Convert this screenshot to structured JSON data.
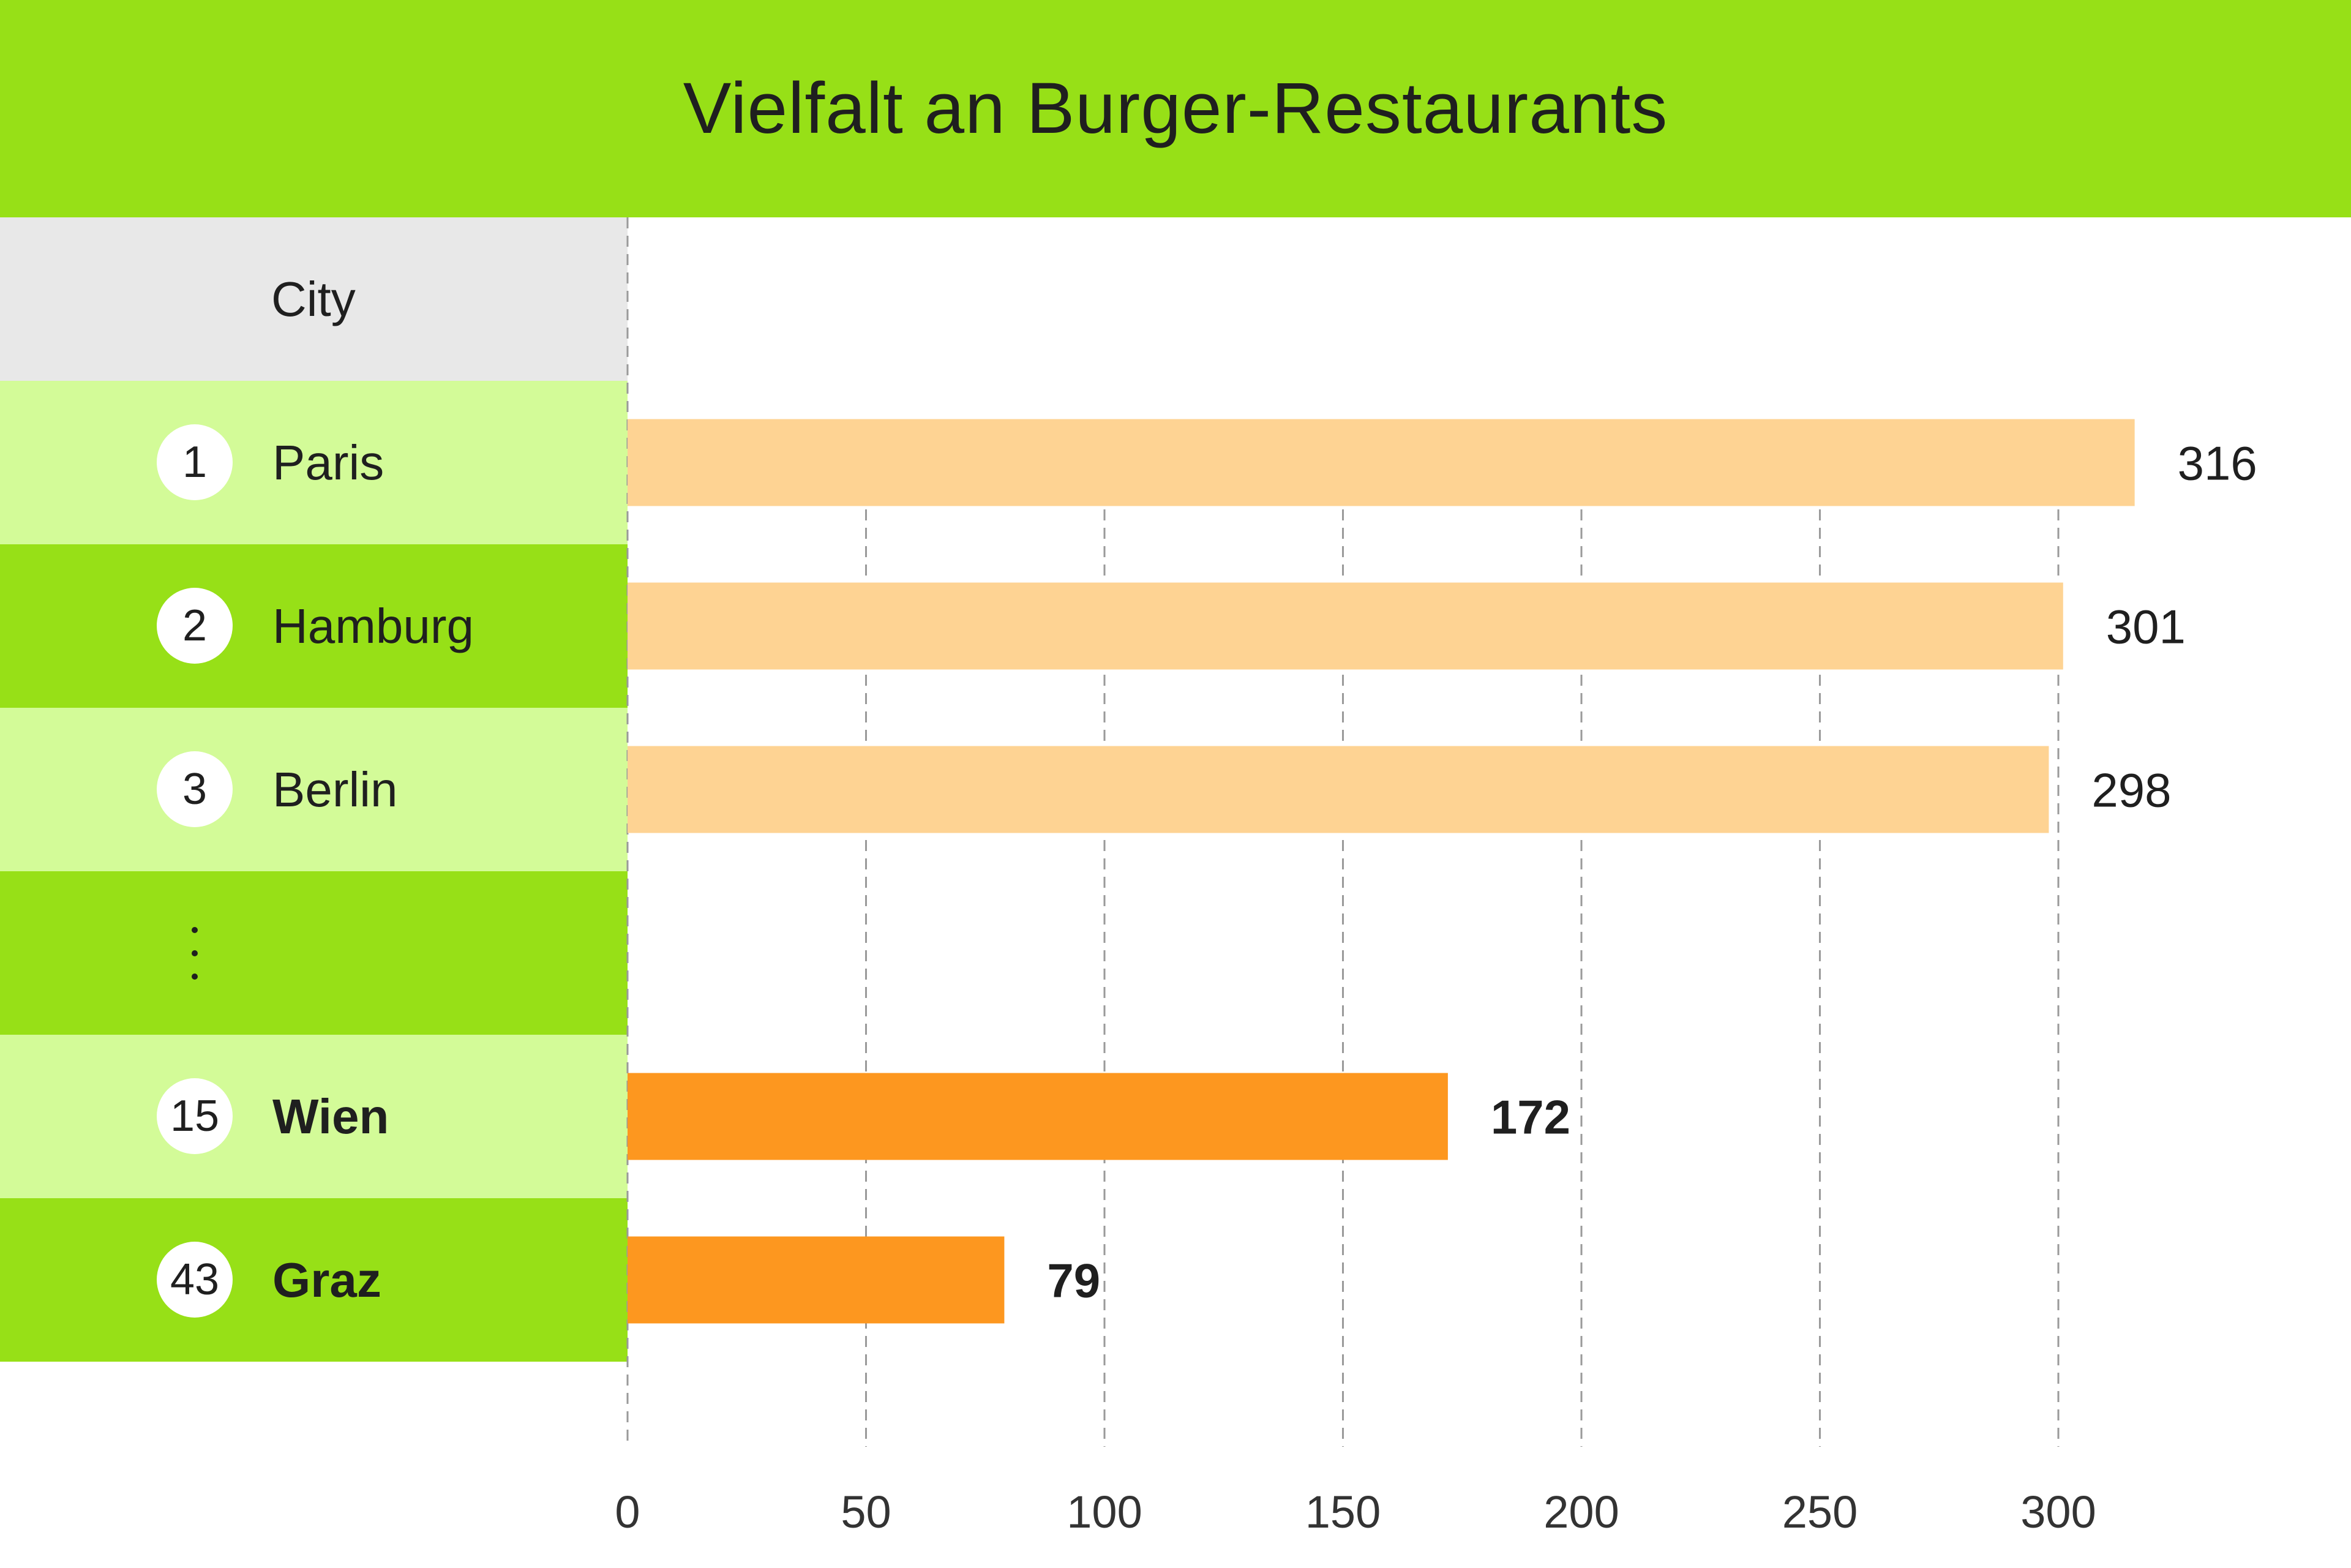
{
  "title": "Vielfalt an Burger-Restaurants",
  "column_header": "City",
  "ellipsis": "⋮",
  "colors": {
    "header_green": "#97e017",
    "row_light": "#d3fb98",
    "row_dark": "#97e017",
    "header_gray": "#e8e8e8",
    "bar_light": "#fed393",
    "bar_highlight": "#fd971f"
  },
  "rows": [
    {
      "rank": "1",
      "city": "Paris",
      "highlight": false
    },
    {
      "rank": "2",
      "city": "Hamburg",
      "highlight": false
    },
    {
      "rank": "3",
      "city": "Berlin",
      "highlight": false
    },
    {
      "rank": "15",
      "city": "Wien",
      "highlight": true
    },
    {
      "rank": "43",
      "city": "Graz",
      "highlight": true
    }
  ],
  "chart_data": {
    "type": "bar",
    "orientation": "horizontal",
    "title": "Vielfalt an Burger-Restaurants",
    "categories": [
      "Paris",
      "Hamburg",
      "Berlin",
      "Wien",
      "Graz"
    ],
    "values": [
      316,
      301,
      298,
      172,
      79
    ],
    "value_labels": [
      "316",
      "301",
      "298",
      "172",
      "79"
    ],
    "highlight": [
      false,
      false,
      false,
      true,
      true
    ],
    "xlim": [
      0,
      300
    ],
    "xticks": [
      "0",
      "50",
      "100",
      "150",
      "200",
      "250",
      "300"
    ],
    "grid": true,
    "xlabel": "",
    "ylabel": "City"
  }
}
